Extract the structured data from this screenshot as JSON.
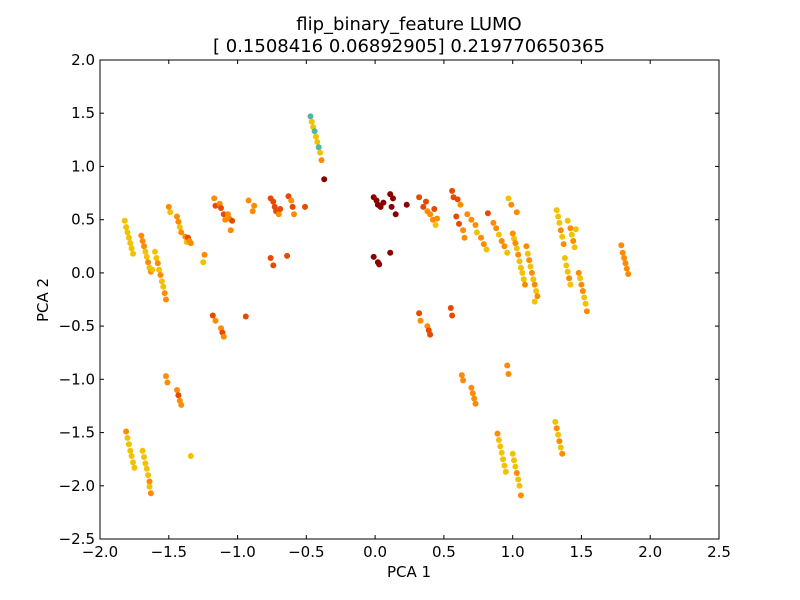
{
  "chart_data": {
    "type": "scatter",
    "title_line1": "flip_binary_feature LUMO",
    "title_line2": "[ 0.1508416   0.06892905] 0.219770650365",
    "xlabel": "PCA 1",
    "ylabel": "PCA 2",
    "xlim": [
      -2.0,
      2.5
    ],
    "ylim": [
      -2.5,
      2.0
    ],
    "xticks": [
      -2.0,
      -1.5,
      -1.0,
      -0.5,
      0.0,
      0.5,
      1.0,
      1.5,
      2.0,
      2.5
    ],
    "xtick_labels": [
      "−2.0",
      "−1.5",
      "−1.0",
      "−0.5",
      "0.0",
      "0.5",
      "1.0",
      "1.5",
      "2.0",
      "2.5"
    ],
    "yticks": [
      -2.5,
      -2.0,
      -1.5,
      -1.0,
      -0.5,
      0.0,
      0.5,
      1.0,
      1.5,
      2.0
    ],
    "ytick_labels": [
      "−2.5",
      "−2.0",
      "−1.5",
      "−1.0",
      "−0.5",
      "0.0",
      "0.5",
      "1.0",
      "1.5",
      "2.0"
    ],
    "grid": false,
    "colormap": "hot",
    "colors": {
      "dark_red": "#8b0000",
      "red": "#cc2200",
      "orange_red": "#e64a00",
      "orange": "#ff8c00",
      "yellow": "#f2c200",
      "teal": "#4fb7a0"
    },
    "points": [
      {
        "x": -1.82,
        "y": 0.49,
        "c": "yellow"
      },
      {
        "x": -1.81,
        "y": 0.43,
        "c": "yellow"
      },
      {
        "x": -1.8,
        "y": 0.38,
        "c": "yellow"
      },
      {
        "x": -1.79,
        "y": 0.33,
        "c": "yellow"
      },
      {
        "x": -1.78,
        "y": 0.28,
        "c": "yellow"
      },
      {
        "x": -1.77,
        "y": 0.23,
        "c": "yellow"
      },
      {
        "x": -1.76,
        "y": 0.18,
        "c": "yellow"
      },
      {
        "x": -1.7,
        "y": 0.35,
        "c": "orange"
      },
      {
        "x": -1.69,
        "y": 0.3,
        "c": "orange"
      },
      {
        "x": -1.68,
        "y": 0.25,
        "c": "orange"
      },
      {
        "x": -1.67,
        "y": 0.2,
        "c": "yellow"
      },
      {
        "x": -1.66,
        "y": 0.15,
        "c": "yellow"
      },
      {
        "x": -1.65,
        "y": 0.1,
        "c": "orange"
      },
      {
        "x": -1.64,
        "y": 0.05,
        "c": "yellow"
      },
      {
        "x": -1.63,
        "y": 0.01,
        "c": "orange"
      },
      {
        "x": -1.62,
        "y": 0.03,
        "c": "yellow"
      },
      {
        "x": -1.6,
        "y": 0.2,
        "c": "yellow"
      },
      {
        "x": -1.59,
        "y": 0.14,
        "c": "yellow"
      },
      {
        "x": -1.58,
        "y": 0.09,
        "c": "orange"
      },
      {
        "x": -1.57,
        "y": 0.03,
        "c": "yellow"
      },
      {
        "x": -1.56,
        "y": -0.02,
        "c": "orange"
      },
      {
        "x": -1.55,
        "y": -0.08,
        "c": "yellow"
      },
      {
        "x": -1.54,
        "y": -0.13,
        "c": "yellow"
      },
      {
        "x": -1.53,
        "y": -0.19,
        "c": "orange"
      },
      {
        "x": -1.52,
        "y": -0.25,
        "c": "orange"
      },
      {
        "x": -1.5,
        "y": 0.62,
        "c": "orange"
      },
      {
        "x": -1.49,
        "y": 0.57,
        "c": "yellow"
      },
      {
        "x": -1.44,
        "y": 0.53,
        "c": "orange"
      },
      {
        "x": -1.43,
        "y": 0.48,
        "c": "orange"
      },
      {
        "x": -1.42,
        "y": 0.43,
        "c": "yellow"
      },
      {
        "x": -1.41,
        "y": 0.38,
        "c": "orange"
      },
      {
        "x": -1.38,
        "y": 0.34,
        "c": "orange"
      },
      {
        "x": -1.37,
        "y": 0.29,
        "c": "yellow"
      },
      {
        "x": -1.36,
        "y": 0.33,
        "c": "orange_red"
      },
      {
        "x": -1.35,
        "y": 0.3,
        "c": "orange"
      },
      {
        "x": -1.34,
        "y": 0.28,
        "c": "orange"
      },
      {
        "x": -1.24,
        "y": 0.17,
        "c": "orange"
      },
      {
        "x": -1.25,
        "y": 0.1,
        "c": "yellow"
      },
      {
        "x": -1.17,
        "y": 0.7,
        "c": "orange"
      },
      {
        "x": -1.16,
        "y": 0.63,
        "c": "orange_red"
      },
      {
        "x": -1.13,
        "y": 0.65,
        "c": "orange"
      },
      {
        "x": -1.12,
        "y": 0.61,
        "c": "orange_red"
      },
      {
        "x": -1.1,
        "y": 0.55,
        "c": "orange_red"
      },
      {
        "x": -1.09,
        "y": 0.5,
        "c": "orange"
      },
      {
        "x": -1.07,
        "y": 0.55,
        "c": "orange"
      },
      {
        "x": -1.06,
        "y": 0.51,
        "c": "orange"
      },
      {
        "x": -1.05,
        "y": 0.4,
        "c": "orange"
      },
      {
        "x": -1.04,
        "y": 0.49,
        "c": "orange_red"
      },
      {
        "x": -0.92,
        "y": 0.68,
        "c": "orange"
      },
      {
        "x": -0.88,
        "y": 0.63,
        "c": "orange"
      },
      {
        "x": -0.89,
        "y": 0.58,
        "c": "orange"
      },
      {
        "x": -0.76,
        "y": 0.7,
        "c": "orange_red"
      },
      {
        "x": -0.74,
        "y": 0.67,
        "c": "orange_red"
      },
      {
        "x": -0.73,
        "y": 0.62,
        "c": "orange_red"
      },
      {
        "x": -0.72,
        "y": 0.58,
        "c": "orange_red"
      },
      {
        "x": -0.7,
        "y": 0.55,
        "c": "orange"
      },
      {
        "x": -0.69,
        "y": 0.6,
        "c": "orange_red"
      },
      {
        "x": -0.63,
        "y": 0.72,
        "c": "orange_red"
      },
      {
        "x": -0.61,
        "y": 0.68,
        "c": "orange"
      },
      {
        "x": -0.6,
        "y": 0.62,
        "c": "orange_red"
      },
      {
        "x": -0.59,
        "y": 0.55,
        "c": "orange"
      },
      {
        "x": -0.51,
        "y": 0.62,
        "c": "orange_red"
      },
      {
        "x": -0.76,
        "y": 0.14,
        "c": "orange_red"
      },
      {
        "x": -0.74,
        "y": 0.07,
        "c": "orange_red"
      },
      {
        "x": -0.64,
        "y": 0.16,
        "c": "orange_red"
      },
      {
        "x": -0.47,
        "y": 1.47,
        "c": "teal"
      },
      {
        "x": -0.46,
        "y": 1.42,
        "c": "yellow"
      },
      {
        "x": -0.45,
        "y": 1.37,
        "c": "yellow"
      },
      {
        "x": -0.44,
        "y": 1.33,
        "c": "teal"
      },
      {
        "x": -0.43,
        "y": 1.28,
        "c": "yellow"
      },
      {
        "x": -0.42,
        "y": 1.23,
        "c": "yellow"
      },
      {
        "x": -0.41,
        "y": 1.18,
        "c": "teal"
      },
      {
        "x": -0.4,
        "y": 1.13,
        "c": "yellow"
      },
      {
        "x": -0.39,
        "y": 1.06,
        "c": "orange"
      },
      {
        "x": -0.37,
        "y": 0.88,
        "c": "dark_red"
      },
      {
        "x": -0.01,
        "y": 0.71,
        "c": "dark_red"
      },
      {
        "x": 0.01,
        "y": 0.68,
        "c": "dark_red"
      },
      {
        "x": 0.02,
        "y": 0.64,
        "c": "dark_red"
      },
      {
        "x": 0.04,
        "y": 0.62,
        "c": "dark_red"
      },
      {
        "x": 0.06,
        "y": 0.66,
        "c": "dark_red"
      },
      {
        "x": 0.11,
        "y": 0.74,
        "c": "dark_red"
      },
      {
        "x": 0.13,
        "y": 0.7,
        "c": "dark_red"
      },
      {
        "x": 0.12,
        "y": 0.62,
        "c": "dark_red"
      },
      {
        "x": 0.15,
        "y": 0.55,
        "c": "dark_red"
      },
      {
        "x": 0.23,
        "y": 0.64,
        "c": "dark_red"
      },
      {
        "x": -0.01,
        "y": 0.15,
        "c": "dark_red"
      },
      {
        "x": 0.02,
        "y": 0.1,
        "c": "dark_red"
      },
      {
        "x": 0.03,
        "y": 0.08,
        "c": "dark_red"
      },
      {
        "x": 0.11,
        "y": 0.19,
        "c": "dark_red"
      },
      {
        "x": 0.32,
        "y": 0.71,
        "c": "orange_red"
      },
      {
        "x": 0.35,
        "y": 0.62,
        "c": "orange_red"
      },
      {
        "x": 0.37,
        "y": 0.67,
        "c": "orange_red"
      },
      {
        "x": 0.38,
        "y": 0.58,
        "c": "orange"
      },
      {
        "x": 0.4,
        "y": 0.55,
        "c": "orange"
      },
      {
        "x": 0.42,
        "y": 0.5,
        "c": "orange"
      },
      {
        "x": 0.43,
        "y": 0.6,
        "c": "orange_red"
      },
      {
        "x": 0.44,
        "y": 0.45,
        "c": "yellow"
      },
      {
        "x": 0.45,
        "y": 0.51,
        "c": "orange"
      },
      {
        "x": 0.56,
        "y": 0.77,
        "c": "orange_red"
      },
      {
        "x": 0.57,
        "y": 0.71,
        "c": "orange_red"
      },
      {
        "x": 0.6,
        "y": 0.69,
        "c": "orange_red"
      },
      {
        "x": 0.62,
        "y": 0.64,
        "c": "orange"
      },
      {
        "x": 0.59,
        "y": 0.53,
        "c": "orange_red"
      },
      {
        "x": 0.61,
        "y": 0.46,
        "c": "orange_red"
      },
      {
        "x": 0.64,
        "y": 0.4,
        "c": "orange"
      },
      {
        "x": 0.65,
        "y": 0.33,
        "c": "orange"
      },
      {
        "x": 0.67,
        "y": 0.55,
        "c": "orange"
      },
      {
        "x": 0.7,
        "y": 0.5,
        "c": "orange"
      },
      {
        "x": 0.73,
        "y": 0.45,
        "c": "orange"
      },
      {
        "x": 0.74,
        "y": 0.38,
        "c": "yellow"
      },
      {
        "x": 0.77,
        "y": 0.33,
        "c": "orange"
      },
      {
        "x": 0.79,
        "y": 0.27,
        "c": "orange"
      },
      {
        "x": 0.81,
        "y": 0.22,
        "c": "yellow"
      },
      {
        "x": 0.82,
        "y": 0.56,
        "c": "orange_red"
      },
      {
        "x": 0.86,
        "y": 0.47,
        "c": "orange"
      },
      {
        "x": 0.88,
        "y": 0.42,
        "c": "orange"
      },
      {
        "x": 0.9,
        "y": 0.36,
        "c": "yellow"
      },
      {
        "x": 0.92,
        "y": 0.3,
        "c": "orange"
      },
      {
        "x": 0.94,
        "y": 0.25,
        "c": "orange"
      },
      {
        "x": 0.96,
        "y": 0.19,
        "c": "yellow"
      },
      {
        "x": 0.97,
        "y": 0.7,
        "c": "yellow"
      },
      {
        "x": 0.99,
        "y": 0.64,
        "c": "orange"
      },
      {
        "x": 1.03,
        "y": 0.57,
        "c": "orange"
      },
      {
        "x": 1.0,
        "y": 0.37,
        "c": "orange"
      },
      {
        "x": 1.01,
        "y": 0.32,
        "c": "yellow"
      },
      {
        "x": 1.02,
        "y": 0.28,
        "c": "orange"
      },
      {
        "x": 1.03,
        "y": 0.23,
        "c": "yellow"
      },
      {
        "x": 1.04,
        "y": 0.17,
        "c": "orange"
      },
      {
        "x": 1.05,
        "y": 0.11,
        "c": "yellow"
      },
      {
        "x": 1.06,
        "y": 0.05,
        "c": "yellow"
      },
      {
        "x": 1.07,
        "y": 0.0,
        "c": "yellow"
      },
      {
        "x": 1.08,
        "y": -0.06,
        "c": "yellow"
      },
      {
        "x": 1.09,
        "y": -0.11,
        "c": "orange"
      },
      {
        "x": 1.1,
        "y": 0.25,
        "c": "orange"
      },
      {
        "x": 1.11,
        "y": 0.18,
        "c": "yellow"
      },
      {
        "x": 1.12,
        "y": 0.12,
        "c": "orange"
      },
      {
        "x": 1.13,
        "y": 0.06,
        "c": "yellow"
      },
      {
        "x": 1.14,
        "y": 0.0,
        "c": "orange"
      },
      {
        "x": 1.15,
        "y": -0.06,
        "c": "yellow"
      },
      {
        "x": 1.16,
        "y": -0.11,
        "c": "orange"
      },
      {
        "x": 1.17,
        "y": -0.17,
        "c": "yellow"
      },
      {
        "x": 1.18,
        "y": -0.22,
        "c": "orange"
      },
      {
        "x": 1.16,
        "y": -0.27,
        "c": "yellow"
      },
      {
        "x": 1.32,
        "y": 0.59,
        "c": "yellow"
      },
      {
        "x": 1.33,
        "y": 0.53,
        "c": "yellow"
      },
      {
        "x": 1.34,
        "y": 0.47,
        "c": "yellow"
      },
      {
        "x": 1.35,
        "y": 0.4,
        "c": "orange"
      },
      {
        "x": 1.36,
        "y": 0.34,
        "c": "yellow"
      },
      {
        "x": 1.37,
        "y": 0.27,
        "c": "orange"
      },
      {
        "x": 1.38,
        "y": 0.14,
        "c": "yellow"
      },
      {
        "x": 1.39,
        "y": 0.07,
        "c": "yellow"
      },
      {
        "x": 1.4,
        "y": 0.01,
        "c": "yellow"
      },
      {
        "x": 1.41,
        "y": -0.05,
        "c": "orange"
      },
      {
        "x": 1.42,
        "y": -0.11,
        "c": "yellow"
      },
      {
        "x": 1.4,
        "y": 0.49,
        "c": "yellow"
      },
      {
        "x": 1.42,
        "y": 0.42,
        "c": "orange"
      },
      {
        "x": 1.43,
        "y": 0.36,
        "c": "yellow"
      },
      {
        "x": 1.44,
        "y": 0.3,
        "c": "orange"
      },
      {
        "x": 1.45,
        "y": 0.24,
        "c": "yellow"
      },
      {
        "x": 1.46,
        "y": 0.41,
        "c": "yellow"
      },
      {
        "x": 1.48,
        "y": 0.0,
        "c": "orange"
      },
      {
        "x": 1.49,
        "y": -0.05,
        "c": "yellow"
      },
      {
        "x": 1.5,
        "y": -0.11,
        "c": "orange"
      },
      {
        "x": 1.51,
        "y": -0.17,
        "c": "orange"
      },
      {
        "x": 1.52,
        "y": -0.23,
        "c": "yellow"
      },
      {
        "x": 1.53,
        "y": -0.29,
        "c": "yellow"
      },
      {
        "x": 1.54,
        "y": -0.36,
        "c": "orange"
      },
      {
        "x": 1.79,
        "y": 0.26,
        "c": "orange"
      },
      {
        "x": 1.8,
        "y": 0.19,
        "c": "orange"
      },
      {
        "x": 1.81,
        "y": 0.14,
        "c": "orange"
      },
      {
        "x": 1.82,
        "y": 0.09,
        "c": "orange"
      },
      {
        "x": 1.83,
        "y": 0.04,
        "c": "orange"
      },
      {
        "x": 1.84,
        "y": -0.01,
        "c": "orange"
      },
      {
        "x": -1.18,
        "y": -0.4,
        "c": "orange_red"
      },
      {
        "x": -1.16,
        "y": -0.45,
        "c": "orange"
      },
      {
        "x": -1.12,
        "y": -0.52,
        "c": "orange"
      },
      {
        "x": -1.11,
        "y": -0.56,
        "c": "orange_red"
      },
      {
        "x": -1.1,
        "y": -0.6,
        "c": "orange"
      },
      {
        "x": -0.94,
        "y": -0.41,
        "c": "orange_red"
      },
      {
        "x": 0.32,
        "y": -0.38,
        "c": "orange_red"
      },
      {
        "x": 0.33,
        "y": -0.45,
        "c": "orange"
      },
      {
        "x": 0.38,
        "y": -0.5,
        "c": "orange"
      },
      {
        "x": 0.39,
        "y": -0.54,
        "c": "orange_red"
      },
      {
        "x": 0.4,
        "y": -0.58,
        "c": "orange_red"
      },
      {
        "x": 0.55,
        "y": -0.33,
        "c": "orange_red"
      },
      {
        "x": 0.56,
        "y": -0.4,
        "c": "orange_red"
      },
      {
        "x": -1.52,
        "y": -0.97,
        "c": "orange"
      },
      {
        "x": -1.51,
        "y": -1.03,
        "c": "orange"
      },
      {
        "x": -1.44,
        "y": -1.1,
        "c": "orange"
      },
      {
        "x": -1.43,
        "y": -1.15,
        "c": "orange_red"
      },
      {
        "x": -1.42,
        "y": -1.2,
        "c": "orange"
      },
      {
        "x": -1.41,
        "y": -1.24,
        "c": "orange"
      },
      {
        "x": -1.34,
        "y": -1.72,
        "c": "yellow"
      },
      {
        "x": 0.63,
        "y": -0.96,
        "c": "orange"
      },
      {
        "x": 0.64,
        "y": -1.01,
        "c": "orange"
      },
      {
        "x": 0.7,
        "y": -1.08,
        "c": "orange"
      },
      {
        "x": 0.71,
        "y": -1.13,
        "c": "orange"
      },
      {
        "x": 0.72,
        "y": -1.18,
        "c": "orange"
      },
      {
        "x": 0.73,
        "y": -1.23,
        "c": "orange"
      },
      {
        "x": 0.96,
        "y": -0.87,
        "c": "orange"
      },
      {
        "x": 0.97,
        "y": -0.95,
        "c": "orange"
      },
      {
        "x": -1.81,
        "y": -1.49,
        "c": "orange"
      },
      {
        "x": -1.8,
        "y": -1.55,
        "c": "yellow"
      },
      {
        "x": -1.79,
        "y": -1.61,
        "c": "yellow"
      },
      {
        "x": -1.78,
        "y": -1.67,
        "c": "yellow"
      },
      {
        "x": -1.77,
        "y": -1.72,
        "c": "yellow"
      },
      {
        "x": -1.76,
        "y": -1.78,
        "c": "yellow"
      },
      {
        "x": -1.75,
        "y": -1.83,
        "c": "yellow"
      },
      {
        "x": -1.69,
        "y": -1.67,
        "c": "yellow"
      },
      {
        "x": -1.68,
        "y": -1.73,
        "c": "yellow"
      },
      {
        "x": -1.67,
        "y": -1.79,
        "c": "yellow"
      },
      {
        "x": -1.66,
        "y": -1.84,
        "c": "yellow"
      },
      {
        "x": -1.65,
        "y": -1.9,
        "c": "yellow"
      },
      {
        "x": -1.64,
        "y": -1.96,
        "c": "orange"
      },
      {
        "x": -1.64,
        "y": -2.01,
        "c": "yellow"
      },
      {
        "x": -1.63,
        "y": -2.07,
        "c": "orange"
      },
      {
        "x": 0.89,
        "y": -1.51,
        "c": "orange"
      },
      {
        "x": 0.9,
        "y": -1.57,
        "c": "yellow"
      },
      {
        "x": 0.91,
        "y": -1.63,
        "c": "yellow"
      },
      {
        "x": 0.92,
        "y": -1.69,
        "c": "yellow"
      },
      {
        "x": 0.93,
        "y": -1.75,
        "c": "yellow"
      },
      {
        "x": 0.94,
        "y": -1.81,
        "c": "yellow"
      },
      {
        "x": 0.95,
        "y": -1.87,
        "c": "yellow"
      },
      {
        "x": 1.0,
        "y": -1.7,
        "c": "yellow"
      },
      {
        "x": 1.01,
        "y": -1.76,
        "c": "yellow"
      },
      {
        "x": 1.02,
        "y": -1.82,
        "c": "yellow"
      },
      {
        "x": 1.03,
        "y": -1.88,
        "c": "orange"
      },
      {
        "x": 1.04,
        "y": -1.94,
        "c": "yellow"
      },
      {
        "x": 1.05,
        "y": -2.0,
        "c": "yellow"
      },
      {
        "x": 1.06,
        "y": -2.09,
        "c": "orange"
      },
      {
        "x": 1.31,
        "y": -1.4,
        "c": "yellow"
      },
      {
        "x": 1.32,
        "y": -1.46,
        "c": "orange"
      },
      {
        "x": 1.33,
        "y": -1.52,
        "c": "yellow"
      },
      {
        "x": 1.34,
        "y": -1.58,
        "c": "orange"
      },
      {
        "x": 1.35,
        "y": -1.64,
        "c": "yellow"
      },
      {
        "x": 1.36,
        "y": -1.7,
        "c": "orange"
      }
    ]
  }
}
